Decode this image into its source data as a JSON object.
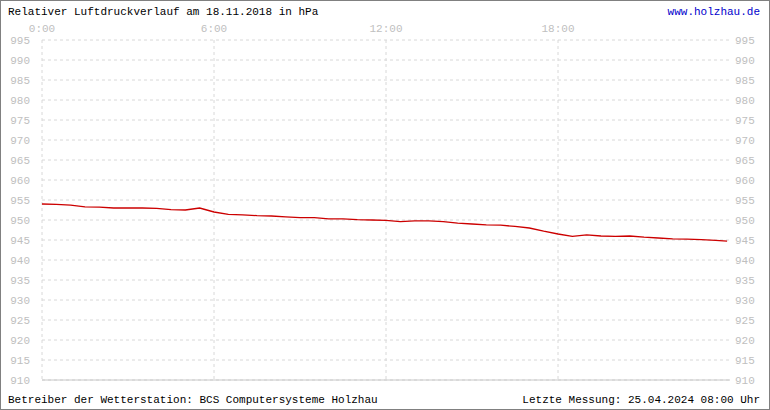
{
  "chart_data": {
    "type": "line",
    "title": "Relativer Luftdruckverlauf am 18.11.2018 in hPa",
    "annotations": [
      "www.holzhau.de",
      "Betreiber der Wetterstation: BCS Computersysteme Holzhau",
      "Letzte Messung: 25.04.2024 08:00 Uhr"
    ],
    "x": [
      0,
      0.5,
      1,
      1.5,
      2,
      2.5,
      3,
      3.5,
      4,
      4.5,
      5,
      5.5,
      6,
      6.5,
      7,
      7.5,
      8,
      8.5,
      9,
      9.5,
      10,
      10.5,
      11,
      11.5,
      12,
      12.5,
      13,
      13.5,
      14,
      14.5,
      15,
      15.5,
      16,
      16.5,
      17,
      17.5,
      18,
      18.5,
      19,
      19.5,
      20,
      20.5,
      21,
      21.5,
      22,
      22.5,
      23,
      23.5,
      23.9
    ],
    "series": [
      {
        "name": "Luftdruck",
        "color": "#cc0000",
        "values": [
          954.0,
          953.9,
          953.7,
          953.3,
          953.2,
          953.0,
          953.0,
          953.0,
          952.9,
          952.6,
          952.5,
          953.0,
          952.0,
          951.4,
          951.3,
          951.1,
          951.0,
          950.8,
          950.6,
          950.6,
          950.3,
          950.3,
          950.1,
          950.0,
          949.9,
          949.6,
          949.8,
          949.8,
          949.6,
          949.2,
          949.0,
          948.8,
          948.7,
          948.4,
          948.0,
          947.2,
          946.5,
          945.9,
          946.3,
          946.0,
          945.9,
          946.0,
          945.7,
          945.5,
          945.3,
          945.2,
          945.1,
          944.9,
          944.7
        ]
      }
    ],
    "xlim": [
      0,
      24
    ],
    "xticks": [
      {
        "value": 0,
        "label": "0:00"
      },
      {
        "value": 6,
        "label": "6:00"
      },
      {
        "value": 12,
        "label": "12:00"
      },
      {
        "value": 18,
        "label": "18:00"
      }
    ],
    "ylim": [
      910,
      995
    ],
    "yticks": [
      910,
      915,
      920,
      925,
      930,
      935,
      940,
      945,
      950,
      955,
      960,
      965,
      970,
      975,
      980,
      985,
      990,
      995
    ],
    "grid": true
  }
}
